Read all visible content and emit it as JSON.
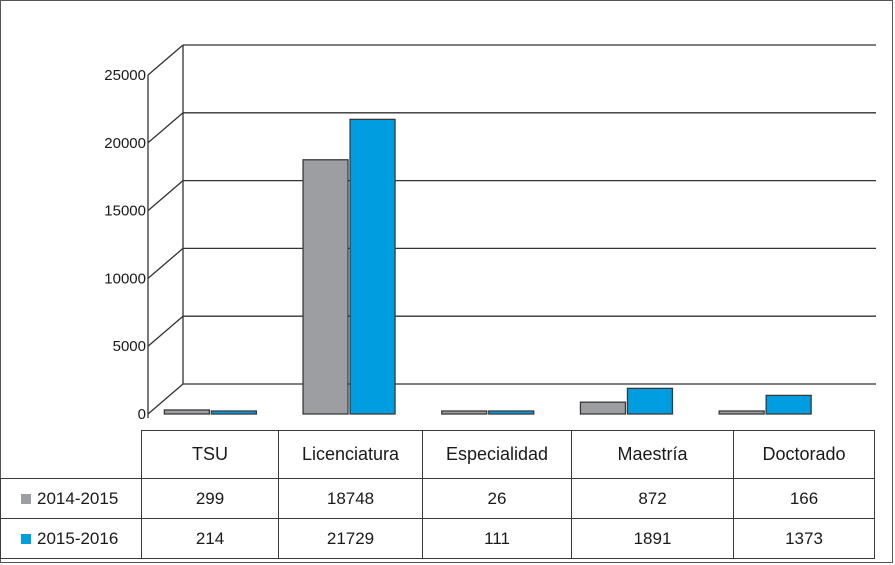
{
  "chart_data": {
    "type": "bar",
    "view": "3d-perspective",
    "categories": [
      "TSU",
      "Licenciatura",
      "Especialidad",
      "Maestría",
      "Doctorado"
    ],
    "series": [
      {
        "name": "2014-2015",
        "color": "#9d9ea2",
        "values": [
          299,
          18748,
          26,
          872,
          166
        ]
      },
      {
        "name": "2015-2016",
        "color": "#009ee0",
        "values": [
          214,
          21729,
          111,
          1891,
          1373
        ]
      }
    ],
    "yticks": [
      "0",
      "5000",
      "10000",
      "15000",
      "20000",
      "25000"
    ],
    "ylim": [
      0,
      25000
    ],
    "grid": true,
    "legend": "data-table"
  },
  "table": {
    "headers": [
      "TSU",
      "Licenciatura",
      "Especialidad",
      "Maestría",
      "Doctorado"
    ],
    "rows": [
      {
        "label": "2014-2015",
        "cells": [
          "299",
          "18748",
          "26",
          "872",
          "166"
        ]
      },
      {
        "label": "2015-2016",
        "cells": [
          "214",
          "21729",
          "111",
          "1891",
          "1373"
        ]
      }
    ]
  }
}
